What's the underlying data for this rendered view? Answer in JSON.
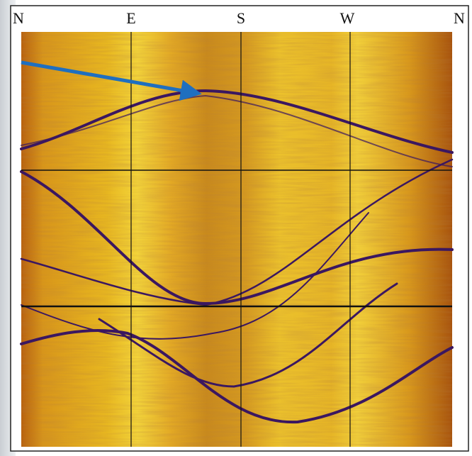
{
  "compass": [
    "N",
    "E",
    "S",
    "W",
    "N"
  ]
}
